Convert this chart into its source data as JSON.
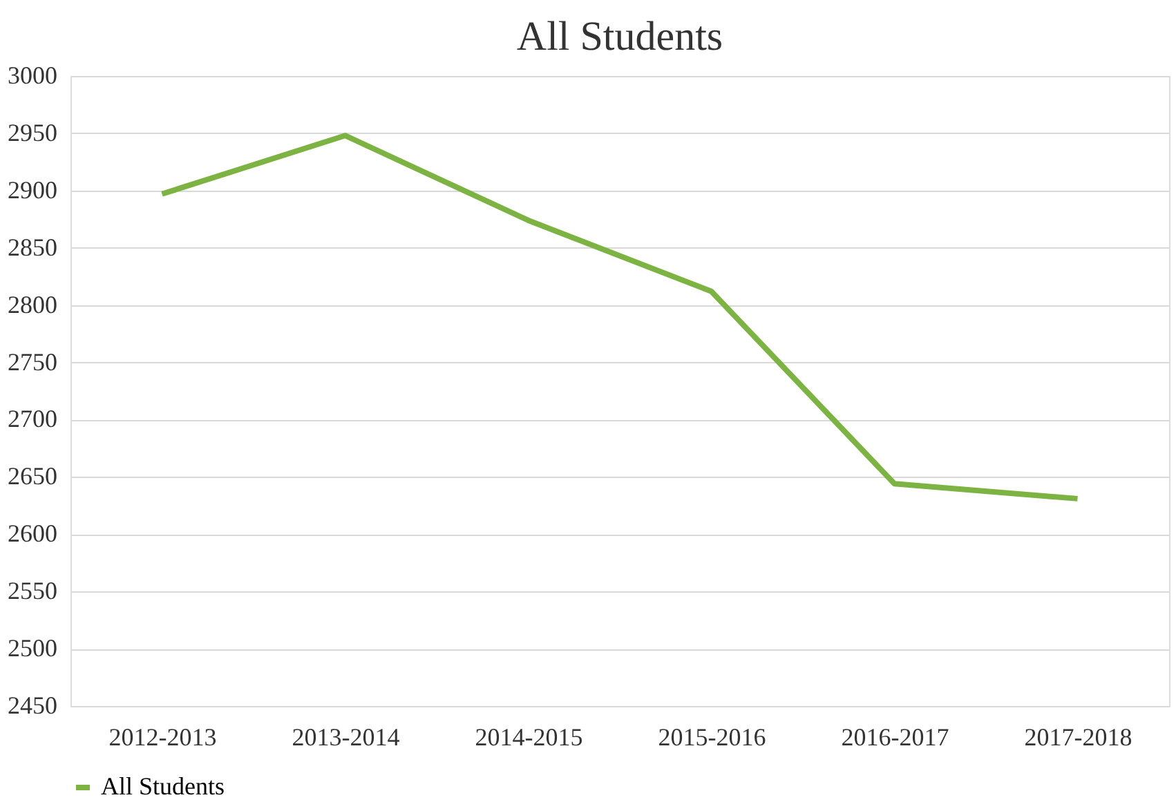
{
  "chart_data": {
    "type": "line",
    "title": "All Students",
    "categories": [
      "2012-2013",
      "2013-2014",
      "2014-2015",
      "2015-2016",
      "2016-2017",
      "2017-2018"
    ],
    "series": [
      {
        "name": "All Students",
        "color": "#7cb342",
        "values": [
          2897,
          2948,
          2874,
          2812,
          2644,
          2631
        ]
      }
    ],
    "ylim": [
      2450,
      3000
    ],
    "yticks": [
      2450,
      2500,
      2550,
      2600,
      2650,
      2700,
      2750,
      2800,
      2850,
      2900,
      2950,
      3000
    ],
    "grid": "y",
    "legend": "bottom",
    "marker": "none",
    "line_style": "solid"
  }
}
